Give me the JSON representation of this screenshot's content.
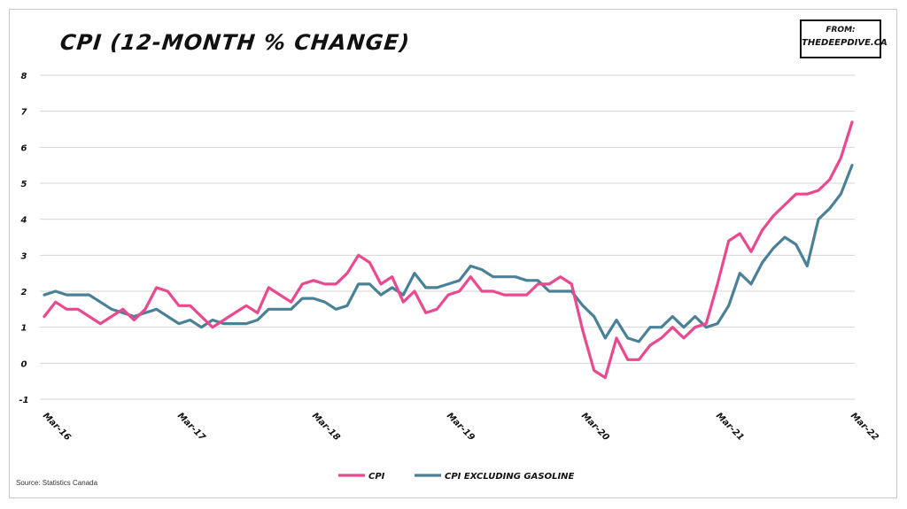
{
  "header": {
    "title": "CPI (12-MONTH % CHANGE)",
    "source_line1": "FROM:",
    "source_line2": "THEDEEPDIVE.CA"
  },
  "footer": {
    "source_note": "Source: Statistics Canada"
  },
  "colors": {
    "cpi": "#e8498f",
    "cpi_ex_gas": "#4b8196",
    "grid": "#d6d6d6"
  },
  "chart_data": {
    "type": "line",
    "title": "CPI (12-MONTH % CHANGE)",
    "xlabel": "",
    "ylabel": "",
    "ylim": [
      -1,
      8
    ],
    "yticks": [
      -1,
      0,
      1,
      2,
      3,
      4,
      5,
      6,
      7,
      8
    ],
    "x_tick_labels": [
      "Mar-16",
      "Mar-17",
      "Mar-18",
      "Mar-19",
      "Mar-20",
      "Mar-21",
      "Mar-22"
    ],
    "grid": true,
    "legend_position": "bottom",
    "x": [
      "2016-03",
      "2016-04",
      "2016-05",
      "2016-06",
      "2016-07",
      "2016-08",
      "2016-09",
      "2016-10",
      "2016-11",
      "2016-12",
      "2017-01",
      "2017-02",
      "2017-03",
      "2017-04",
      "2017-05",
      "2017-06",
      "2017-07",
      "2017-08",
      "2017-09",
      "2017-10",
      "2017-11",
      "2017-12",
      "2018-01",
      "2018-02",
      "2018-03",
      "2018-04",
      "2018-05",
      "2018-06",
      "2018-07",
      "2018-08",
      "2018-09",
      "2018-10",
      "2018-11",
      "2018-12",
      "2019-01",
      "2019-02",
      "2019-03",
      "2019-04",
      "2019-05",
      "2019-06",
      "2019-07",
      "2019-08",
      "2019-09",
      "2019-10",
      "2019-11",
      "2019-12",
      "2020-01",
      "2020-02",
      "2020-03",
      "2020-04",
      "2020-05",
      "2020-06",
      "2020-07",
      "2020-08",
      "2020-09",
      "2020-10",
      "2020-11",
      "2020-12",
      "2021-01",
      "2021-02",
      "2021-03",
      "2021-04",
      "2021-05",
      "2021-06",
      "2021-07",
      "2021-08",
      "2021-09",
      "2021-10",
      "2021-11",
      "2021-12",
      "2022-01",
      "2022-02",
      "2022-03"
    ],
    "series": [
      {
        "name": "CPI",
        "values": [
          1.3,
          1.7,
          1.5,
          1.5,
          1.3,
          1.1,
          1.3,
          1.5,
          1.2,
          1.5,
          2.1,
          2.0,
          1.6,
          1.6,
          1.3,
          1.0,
          1.2,
          1.4,
          1.6,
          1.4,
          2.1,
          1.9,
          1.7,
          2.2,
          2.3,
          2.2,
          2.2,
          2.5,
          3.0,
          2.8,
          2.2,
          2.4,
          1.7,
          2.0,
          1.4,
          1.5,
          1.9,
          2.0,
          2.4,
          2.0,
          2.0,
          1.9,
          1.9,
          1.9,
          2.2,
          2.2,
          2.4,
          2.2,
          0.9,
          -0.2,
          -0.4,
          0.7,
          0.1,
          0.1,
          0.5,
          0.7,
          1.0,
          0.7,
          1.0,
          1.1,
          2.2,
          3.4,
          3.6,
          3.1,
          3.7,
          4.1,
          4.4,
          4.7,
          4.7,
          4.8,
          5.1,
          5.7,
          6.7
        ]
      },
      {
        "name": "CPI excluding gasoline",
        "values": [
          1.9,
          2.0,
          1.9,
          1.9,
          1.9,
          1.7,
          1.5,
          1.4,
          1.3,
          1.4,
          1.5,
          1.3,
          1.1,
          1.2,
          1.0,
          1.2,
          1.1,
          1.1,
          1.1,
          1.2,
          1.5,
          1.5,
          1.5,
          1.8,
          1.8,
          1.7,
          1.5,
          1.6,
          2.2,
          2.2,
          1.9,
          2.1,
          1.9,
          2.5,
          2.1,
          2.1,
          2.2,
          2.3,
          2.7,
          2.6,
          2.4,
          2.4,
          2.4,
          2.3,
          2.3,
          2.0,
          2.0,
          2.0,
          1.6,
          1.3,
          0.7,
          1.2,
          0.7,
          0.6,
          1.0,
          1.0,
          1.3,
          1.0,
          1.3,
          1.0,
          1.1,
          1.6,
          2.5,
          2.2,
          2.8,
          3.2,
          3.5,
          3.3,
          2.7,
          4.0,
          4.3,
          4.7,
          5.5
        ]
      }
    ]
  }
}
